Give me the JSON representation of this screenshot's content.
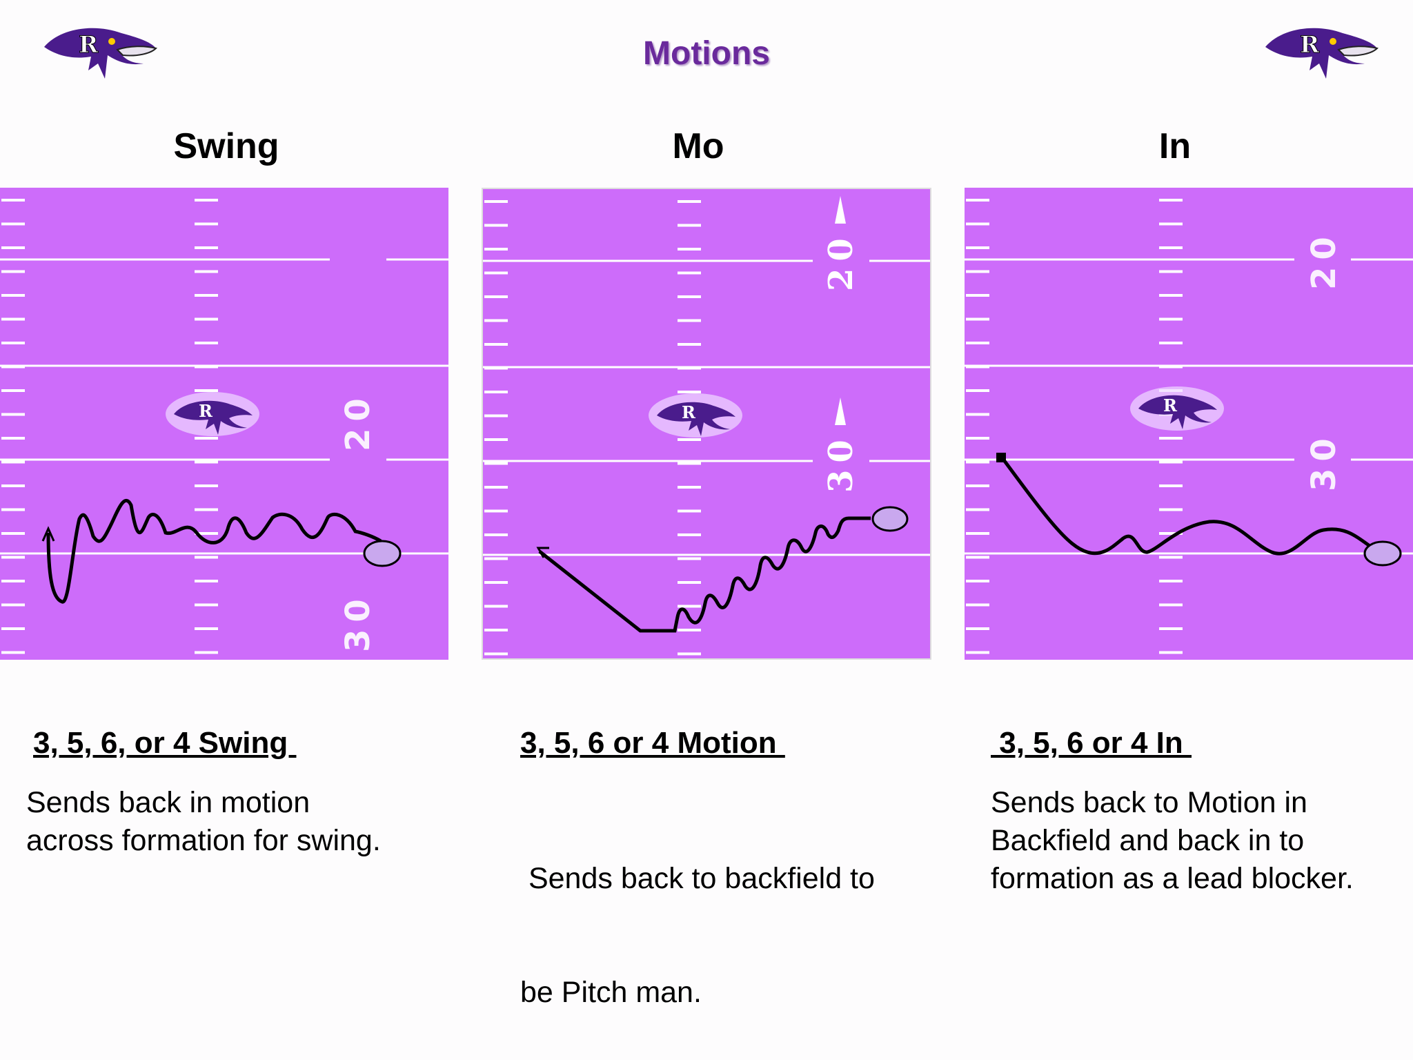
{
  "title": "Motions",
  "logo_letter": "R",
  "colors": {
    "field": "#cd6cfa",
    "field_lines": "#ffffff",
    "motion_path": "#000000",
    "player_fill": "#c9a8ee",
    "logo_purple": "#4a1c8c",
    "title": "#6a2a9c"
  },
  "icons": [
    "raven-logo-icon",
    "player-circle-icon",
    "motion-arrow-icon"
  ],
  "panels": [
    {
      "name": "Swing",
      "yard_numbers": [
        "20",
        "30"
      ],
      "caption_title": "3, 5, 6, or 4 Swing ",
      "caption_lines": [
        "Sends back in motion",
        "across formation for swing."
      ]
    },
    {
      "name": "Mo",
      "yard_numbers": [
        "20",
        "30"
      ],
      "caption_title": "3, 5, 6 or 4 Motion ",
      "caption_lines": [
        " Sends back to backfield to",
        "be Pitch man."
      ]
    },
    {
      "name": "In",
      "yard_numbers": [
        "20",
        "30"
      ],
      "caption_title": " 3, 5, 6 or 4 In ",
      "caption_lines": [
        "Sends back to Motion in",
        "Backfield and back in to",
        "formation as a lead blocker."
      ]
    }
  ]
}
